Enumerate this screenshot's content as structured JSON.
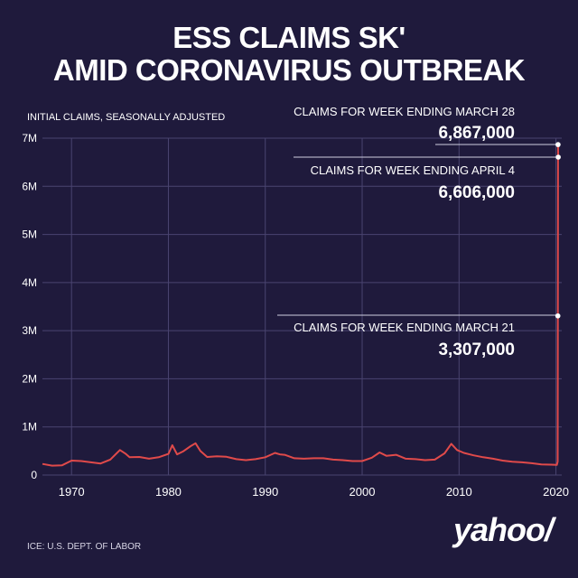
{
  "header": {
    "title_line1": "ESS CLAIMS SK'",
    "title_line2": "AMID CORONAVIRUS OUTBREAK"
  },
  "footer": {
    "source": "ICE: U.S. DEPT. OF LABOR",
    "logo": "yahoo/"
  },
  "colors": {
    "background": "#1f1a3c",
    "line": "#e04a4a",
    "grid": "#4a4470",
    "text": "#ffffff"
  },
  "chart_data": {
    "type": "line",
    "title": "",
    "ylabel": "INITIAL CLAIMS, SEASONALLY ADJUSTED",
    "xlabel": "",
    "xlim": [
      1967,
      2020.6
    ],
    "ylim": [
      0,
      7000000
    ],
    "x_ticks": [
      1970,
      1980,
      1990,
      2000,
      2010,
      2020
    ],
    "x_tick_labels": [
      "1970",
      "1980",
      "1990",
      "2000",
      "2010",
      "2020"
    ],
    "y_ticks": [
      0,
      1000000,
      2000000,
      3000000,
      4000000,
      5000000,
      6000000,
      7000000
    ],
    "y_tick_labels": [
      "0",
      "1M",
      "2M",
      "3M",
      "4M",
      "5M",
      "6M",
      "7M"
    ],
    "grid": true,
    "series": [
      {
        "values": [
          [
            1967.0,
            230000
          ],
          [
            1968.0,
            195000
          ],
          [
            1969.0,
            200000
          ],
          [
            1970.0,
            300000
          ],
          [
            1971.0,
            290000
          ],
          [
            1972.0,
            265000
          ],
          [
            1973.0,
            240000
          ],
          [
            1974.0,
            320000
          ],
          [
            1975.0,
            520000
          ],
          [
            1975.6,
            440000
          ],
          [
            1976.0,
            370000
          ],
          [
            1977.0,
            375000
          ],
          [
            1978.0,
            340000
          ],
          [
            1979.0,
            370000
          ],
          [
            1980.0,
            440000
          ],
          [
            1980.4,
            620000
          ],
          [
            1980.9,
            430000
          ],
          [
            1981.5,
            490000
          ],
          [
            1982.3,
            600000
          ],
          [
            1982.8,
            660000
          ],
          [
            1983.3,
            500000
          ],
          [
            1984.0,
            375000
          ],
          [
            1985.0,
            390000
          ],
          [
            1986.0,
            380000
          ],
          [
            1987.0,
            330000
          ],
          [
            1988.0,
            310000
          ],
          [
            1989.0,
            330000
          ],
          [
            1990.0,
            370000
          ],
          [
            1991.0,
            460000
          ],
          [
            1991.5,
            430000
          ],
          [
            1992.0,
            420000
          ],
          [
            1993.0,
            350000
          ],
          [
            1994.0,
            340000
          ],
          [
            1995.0,
            350000
          ],
          [
            1996.0,
            350000
          ],
          [
            1997.0,
            320000
          ],
          [
            1998.0,
            310000
          ],
          [
            1999.0,
            290000
          ],
          [
            2000.0,
            290000
          ],
          [
            2001.0,
            360000
          ],
          [
            2001.8,
            470000
          ],
          [
            2002.5,
            400000
          ],
          [
            2003.5,
            420000
          ],
          [
            2004.5,
            340000
          ],
          [
            2005.5,
            330000
          ],
          [
            2006.5,
            310000
          ],
          [
            2007.5,
            320000
          ],
          [
            2008.5,
            450000
          ],
          [
            2009.2,
            650000
          ],
          [
            2009.8,
            520000
          ],
          [
            2010.5,
            460000
          ],
          [
            2011.5,
            410000
          ],
          [
            2012.5,
            370000
          ],
          [
            2013.5,
            340000
          ],
          [
            2014.5,
            300000
          ],
          [
            2015.5,
            275000
          ],
          [
            2016.5,
            265000
          ],
          [
            2017.5,
            245000
          ],
          [
            2018.5,
            220000
          ],
          [
            2019.5,
            215000
          ],
          [
            2020.1,
            211000
          ],
          [
            2020.18,
            282000
          ],
          [
            2020.2,
            3307000
          ],
          [
            2020.22,
            6867000
          ],
          [
            2020.24,
            6606000
          ]
        ]
      }
    ],
    "annotations": [
      {
        "label": "CLAIMS FOR WEEK ENDING MARCH 28",
        "value_label": "6,867,000",
        "x": 2020.22,
        "y": 6867000
      },
      {
        "label": "CLAIMS FOR WEEK ENDING APRIL 4",
        "value_label": "6,606,000",
        "x": 2020.24,
        "y": 6606000
      },
      {
        "label": "CLAIMS FOR WEEK ENDING MARCH 21",
        "value_label": "3,307,000",
        "x": 2020.2,
        "y": 3307000
      }
    ]
  }
}
